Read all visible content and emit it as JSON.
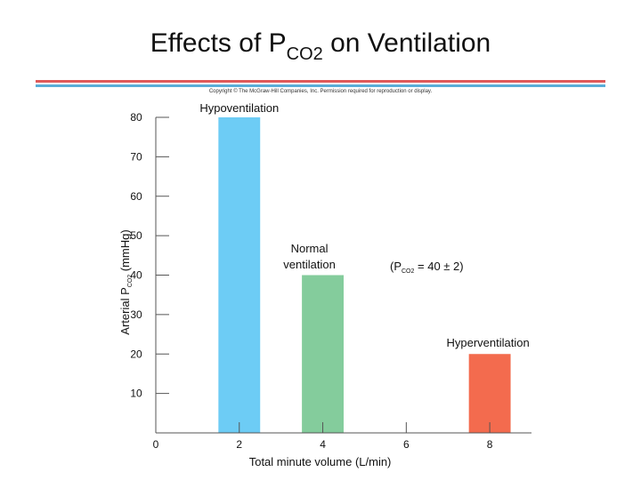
{
  "header": {
    "title_main": "Effects of P",
    "title_sub": "CO2",
    "title_end": " on Ventilation",
    "copyright": "Copyright © The McGraw-Hill Companies, Inc. Permission required for reproduction or display."
  },
  "colors": {
    "rule_red": "#e05a5a",
    "rule_blue": "#5aaed8",
    "axis": "#555555"
  },
  "chart_data": {
    "type": "bar",
    "title": "Effects of PCO2 on Ventilation",
    "xlabel": "Total minute volume (L/min)",
    "ylabel_main": "Arterial P",
    "ylabel_sub": "CO2",
    "ylabel_end": " (mmHg)",
    "xlim": [
      0,
      9
    ],
    "ylim": [
      0,
      80
    ],
    "xticks": [
      0,
      2,
      4,
      6,
      8
    ],
    "yticks": [
      10,
      20,
      30,
      40,
      50,
      60,
      70,
      80
    ],
    "bar_width": 1,
    "bars": [
      {
        "x": 2,
        "value": 80,
        "label": "Hypoventilation",
        "color": "#6dccf5"
      },
      {
        "x": 4,
        "value": 40,
        "label_lines": [
          "Normal",
          "ventilation"
        ],
        "color": "#84cc9c"
      },
      {
        "x": 8,
        "value": 20,
        "label": "Hyperventilation",
        "color": "#f36b4e"
      }
    ],
    "annotation": {
      "pre": "(P",
      "sub": "CO2",
      "post": " = 40 ± 2)"
    }
  }
}
